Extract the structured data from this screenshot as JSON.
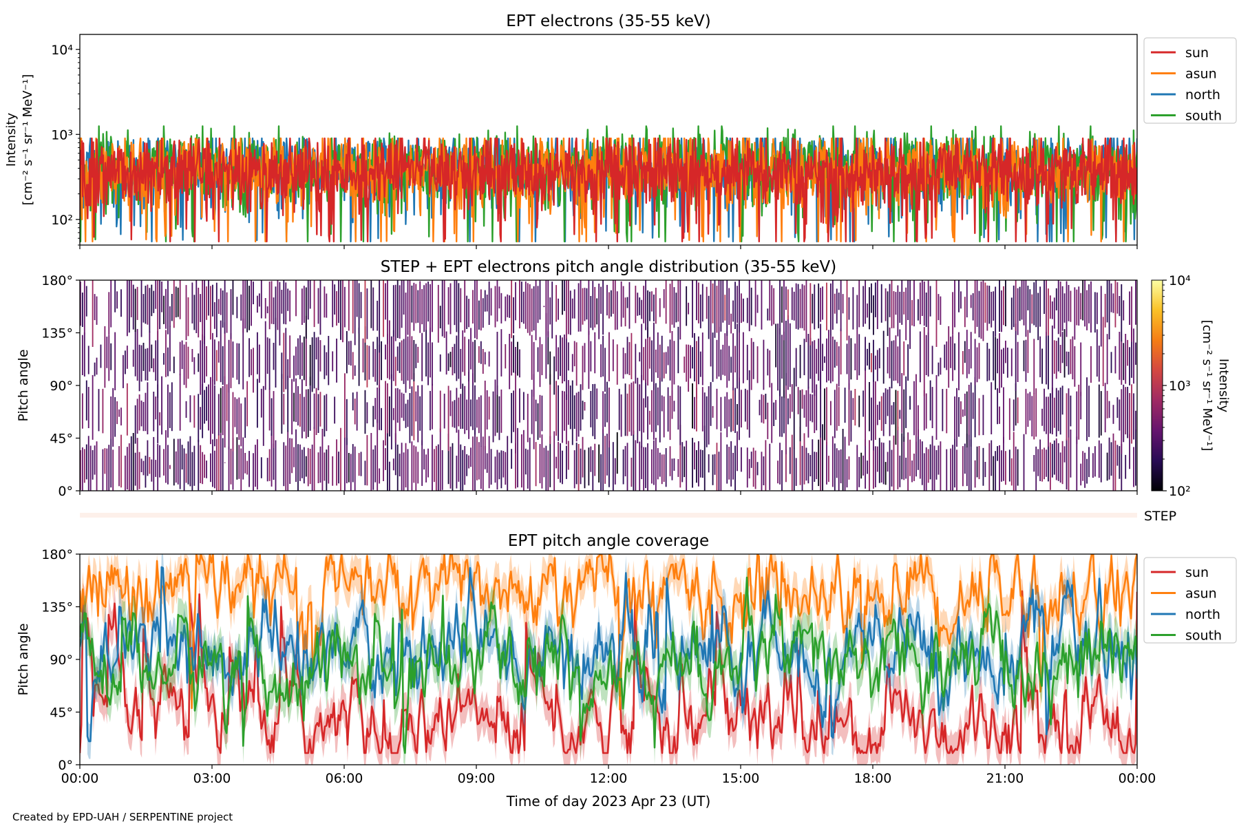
{
  "figure": {
    "credit": "Created by EPD-UAH / SERPENTINE project",
    "xlabel": "Time of day 2023 Apr 23 (UT)",
    "time_ticks": [
      "00:00",
      "03:00",
      "06:00",
      "09:00",
      "12:00",
      "15:00",
      "18:00",
      "21:00",
      "00:00"
    ],
    "time_range_hours": [
      0,
      24
    ],
    "step_strip_label": "STEP",
    "step_strip_color": "#fdf0ea"
  },
  "chart_data": [
    {
      "type": "line",
      "title": "EPT electrons (35-55 keV)",
      "ylabel_line1": "Intensity",
      "ylabel_line2": "[cm⁻² s⁻¹ sr⁻¹ MeV⁻¹]",
      "yscale": "log",
      "ylim": [
        50,
        15000
      ],
      "yticks": [
        {
          "value": 100,
          "label": "10²"
        },
        {
          "value": 1000,
          "label": "10³"
        },
        {
          "value": 10000,
          "label": "10⁴"
        }
      ],
      "legend_position": "outside-right",
      "colors": {
        "sun": "#d62728",
        "asun": "#ff7f0e",
        "north": "#1f77b4",
        "south": "#2ca02c"
      },
      "series": [
        {
          "name": "sun",
          "typical_value": 360,
          "range": [
            55,
            900
          ]
        },
        {
          "name": "asun",
          "typical_value": 380,
          "range": [
            55,
            900
          ]
        },
        {
          "name": "north",
          "typical_value": 390,
          "range": [
            55,
            900
          ]
        },
        {
          "name": "south",
          "typical_value": 390,
          "range": [
            55,
            1250
          ]
        }
      ],
      "draw_order": [
        "north",
        "south",
        "asun",
        "sun"
      ]
    },
    {
      "type": "heatmap",
      "title": "STEP + EPT electrons pitch angle distribution (35-55 keV)",
      "ylabel": "Pitch angle",
      "ylim": [
        0,
        180
      ],
      "yticks": [
        "0°",
        "45°",
        "90°",
        "135°",
        "180°"
      ],
      "colorbar": {
        "label_line1": "Intensity",
        "label_line2": "[cm⁻² s⁻¹ sr⁻¹ MeV⁻¹]",
        "scale": "log",
        "range": [
          100,
          10000
        ],
        "ticks": [
          {
            "value": 100,
            "label": "10²"
          },
          {
            "value": 1000,
            "label": "10³"
          },
          {
            "value": 10000,
            "label": "10⁴"
          }
        ],
        "colormap": "inferno"
      },
      "typical_intensity": 320
    },
    {
      "type": "line",
      "title": "EPT pitch angle coverage",
      "ylabel": "Pitch angle",
      "ylim": [
        0,
        180
      ],
      "yticks": [
        "0°",
        "45°",
        "90°",
        "135°",
        "180°"
      ],
      "legend_position": "outside-right",
      "colors": {
        "sun": "#d62728",
        "asun": "#ff7f0e",
        "north": "#1f77b4",
        "south": "#2ca02c"
      },
      "series": [
        {
          "name": "sun",
          "typical_value": 35,
          "range": [
            10,
            150
          ]
        },
        {
          "name": "asun",
          "typical_value": 150,
          "range": [
            30,
            180
          ]
        },
        {
          "name": "north",
          "typical_value": 95,
          "range": [
            20,
            170
          ]
        },
        {
          "name": "south",
          "typical_value": 85,
          "range": [
            10,
            160
          ]
        }
      ],
      "shaded_band_half_width_deg": 15
    }
  ]
}
